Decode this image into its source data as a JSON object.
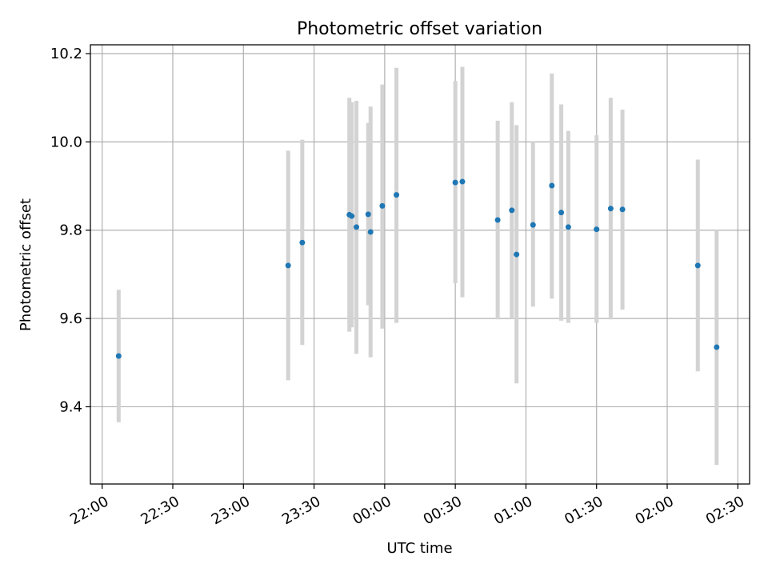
{
  "chart_data": {
    "type": "scatter",
    "title": "Photometric offset variation",
    "xlabel": "UTC time",
    "ylabel": "Photometric offset",
    "x_ticks": [
      "22:00",
      "22:30",
      "23:00",
      "23:30",
      "00:00",
      "00:30",
      "01:00",
      "01:30",
      "02:00",
      "02:30"
    ],
    "y_ticks": [
      "9.4",
      "9.6",
      "9.8",
      "10.0",
      "10.2"
    ],
    "xlim": [
      "2000-01-01T21:55",
      "2000-01-02T02:35"
    ],
    "ylim": [
      9.225,
      10.22
    ],
    "grid": true,
    "colors": {
      "point": "#1f77b4",
      "errorbar": "#d3d3d3",
      "grid": "#b0b0b0"
    },
    "series": [
      {
        "points": [
          {
            "x": "2000-01-01T22:07",
            "y": 9.515,
            "yerr_low": 9.365,
            "yerr_high": 9.665
          },
          {
            "x": "2000-01-01T23:19",
            "y": 9.72,
            "yerr_low": 9.46,
            "yerr_high": 9.98
          },
          {
            "x": "2000-01-01T23:25",
            "y": 9.772,
            "yerr_low": 9.54,
            "yerr_high": 10.005
          },
          {
            "x": "2000-01-01T23:45",
            "y": 9.835,
            "yerr_low": 9.57,
            "yerr_high": 10.1
          },
          {
            "x": "2000-01-01T23:46",
            "y": 9.832,
            "yerr_low": 9.58,
            "yerr_high": 10.09
          },
          {
            "x": "2000-01-01T23:48",
            "y": 9.807,
            "yerr_low": 9.52,
            "yerr_high": 10.093
          },
          {
            "x": "2000-01-01T23:53",
            "y": 9.836,
            "yerr_low": 9.63,
            "yerr_high": 10.043
          },
          {
            "x": "2000-01-01T23:54",
            "y": 9.796,
            "yerr_low": 9.512,
            "yerr_high": 10.08
          },
          {
            "x": "2000-01-01T23:59",
            "y": 9.855,
            "yerr_low": 9.577,
            "yerr_high": 10.13
          },
          {
            "x": "2000-01-02T00:05",
            "y": 9.88,
            "yerr_low": 9.59,
            "yerr_high": 10.168
          },
          {
            "x": "2000-01-02T00:30",
            "y": 9.908,
            "yerr_low": 9.68,
            "yerr_high": 10.138
          },
          {
            "x": "2000-01-02T00:33",
            "y": 9.91,
            "yerr_low": 9.648,
            "yerr_high": 10.17
          },
          {
            "x": "2000-01-02T00:48",
            "y": 9.823,
            "yerr_low": 9.598,
            "yerr_high": 10.048
          },
          {
            "x": "2000-01-02T00:54",
            "y": 9.845,
            "yerr_low": 9.6,
            "yerr_high": 10.09
          },
          {
            "x": "2000-01-02T00:56",
            "y": 9.745,
            "yerr_low": 9.453,
            "yerr_high": 10.038
          },
          {
            "x": "2000-01-02T01:03",
            "y": 9.812,
            "yerr_low": 9.627,
            "yerr_high": 10.0
          },
          {
            "x": "2000-01-02T01:11",
            "y": 9.901,
            "yerr_low": 9.645,
            "yerr_high": 10.155
          },
          {
            "x": "2000-01-02T01:15",
            "y": 9.84,
            "yerr_low": 9.595,
            "yerr_high": 10.085
          },
          {
            "x": "2000-01-02T01:18",
            "y": 9.807,
            "yerr_low": 9.59,
            "yerr_high": 10.025
          },
          {
            "x": "2000-01-02T01:30",
            "y": 9.802,
            "yerr_low": 9.59,
            "yerr_high": 10.015
          },
          {
            "x": "2000-01-02T01:36",
            "y": 9.849,
            "yerr_low": 9.598,
            "yerr_high": 10.1
          },
          {
            "x": "2000-01-02T01:41",
            "y": 9.847,
            "yerr_low": 9.62,
            "yerr_high": 10.073
          },
          {
            "x": "2000-01-02T02:13",
            "y": 9.72,
            "yerr_low": 9.48,
            "yerr_high": 9.96
          },
          {
            "x": "2000-01-02T02:21",
            "y": 9.535,
            "yerr_low": 9.268,
            "yerr_high": 9.8
          }
        ]
      }
    ]
  }
}
